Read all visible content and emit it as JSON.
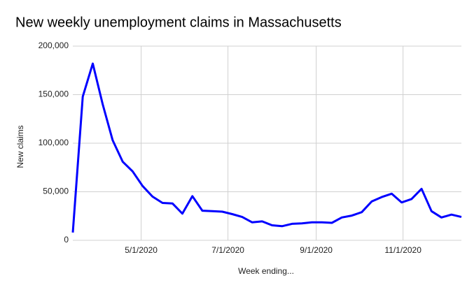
{
  "chart_data": {
    "type": "line",
    "title": "New weekly unemployment claims in Massachusetts",
    "x_label": "Week ending...",
    "y_label": "New claims",
    "x": [
      "3/14/2020",
      "3/21/2020",
      "3/28/2020",
      "4/4/2020",
      "4/11/2020",
      "4/18/2020",
      "4/25/2020",
      "5/2/2020",
      "5/9/2020",
      "5/16/2020",
      "5/23/2020",
      "5/30/2020",
      "6/6/2020",
      "6/13/2020",
      "6/20/2020",
      "6/27/2020",
      "7/4/2020",
      "7/11/2020",
      "7/18/2020",
      "7/25/2020",
      "8/1/2020",
      "8/8/2020",
      "8/15/2020",
      "8/22/2020",
      "8/29/2020",
      "9/5/2020",
      "9/12/2020",
      "9/19/2020",
      "9/26/2020",
      "10/3/2020",
      "10/10/2020",
      "10/17/2020",
      "10/24/2020",
      "10/31/2020",
      "11/7/2020",
      "11/14/2020",
      "11/21/2020",
      "11/28/2020",
      "12/5/2020",
      "12/12/2020"
    ],
    "series": [
      {
        "name": "New claims",
        "color": "#0000ff",
        "values": [
          8000,
          148000,
          182000,
          140000,
          103000,
          81000,
          71000,
          56000,
          45000,
          38500,
          38000,
          27500,
          45500,
          30500,
          30000,
          29500,
          27000,
          24000,
          18500,
          19500,
          15500,
          14500,
          17000,
          17500,
          18500,
          18500,
          18000,
          23500,
          25500,
          29000,
          40000,
          44500,
          48000,
          39000,
          42500,
          53000,
          30000,
          23500,
          26500,
          24000
        ]
      }
    ],
    "xlim": [
      "3/14/2020",
      "12/12/2020"
    ],
    "xticks": [
      "5/1/2020",
      "7/1/2020",
      "9/1/2020",
      "11/1/2020"
    ],
    "ylim": [
      0,
      200000
    ],
    "yticks": [
      0,
      {
        "value": 50000,
        "label": "50,000"
      },
      {
        "value": 100000,
        "label": "100,000"
      },
      {
        "value": 150000,
        "label": "150,000"
      },
      {
        "value": 200000,
        "label": "200,000"
      }
    ],
    "grid": true
  }
}
